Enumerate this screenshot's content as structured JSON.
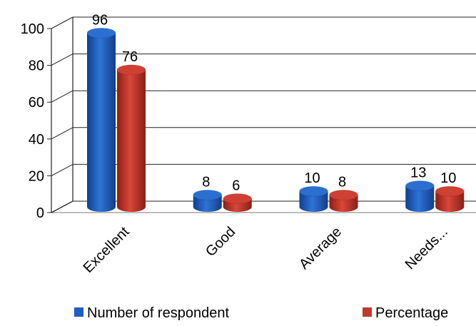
{
  "chart_data": {
    "type": "bar",
    "categories": [
      "Excellent",
      "Good",
      "Average",
      "Needs..."
    ],
    "series": [
      {
        "name": "Number of respondent",
        "values": [
          96,
          8,
          10,
          13
        ],
        "color": "#1f5fbf"
      },
      {
        "name": "Percentage",
        "values": [
          76,
          6,
          8,
          10
        ],
        "color": "#c0392b"
      }
    ],
    "ylim": [
      0,
      100
    ],
    "yticks": [
      0,
      20,
      40,
      60,
      80,
      100
    ],
    "grid": true,
    "legend_position": "bottom",
    "style": "3d-cylinder"
  }
}
